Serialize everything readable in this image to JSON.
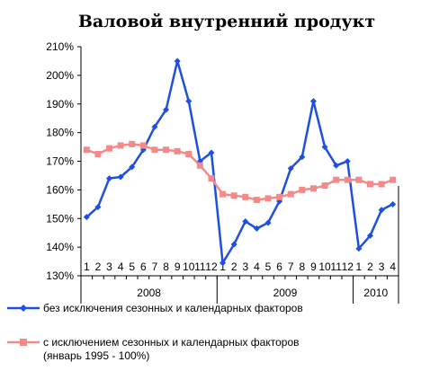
{
  "chart_data": {
    "type": "line",
    "title": "Валовой внутренний продукт",
    "ylim": [
      130,
      210
    ],
    "yticks": [
      "130%",
      "140%",
      "150%",
      "160%",
      "170%",
      "180%",
      "190%",
      "200%",
      "210%"
    ],
    "ytick_values": [
      130,
      140,
      150,
      160,
      170,
      180,
      190,
      200,
      210
    ],
    "grid": false,
    "legend_position": "bottom",
    "categories": [
      "1",
      "2",
      "3",
      "4",
      "5",
      "6",
      "7",
      "8",
      "9",
      "10",
      "11",
      "12",
      "1",
      "2",
      "3",
      "4",
      "5",
      "6",
      "7",
      "8",
      "9",
      "10",
      "11",
      "12",
      "1",
      "2",
      "3",
      "4"
    ],
    "year_groups": [
      {
        "label": "2008",
        "count": 12
      },
      {
        "label": "2009",
        "count": 12
      },
      {
        "label": "2010",
        "count": 4
      }
    ],
    "series": [
      {
        "name": "без исключения сезонных и календарных факторов",
        "color": "#1f4fe0",
        "marker": "diamond",
        "values": [
          150.5,
          154,
          164,
          164.5,
          168,
          174,
          182,
          188,
          205,
          191,
          170,
          173,
          134.5,
          141,
          149,
          146.5,
          148.5,
          156,
          167.5,
          171.5,
          191,
          175,
          168.5,
          170,
          139.5,
          144,
          153,
          155
        ]
      },
      {
        "name": "с исключением сезонных и календарных факторов (январь 1995 - 100%)",
        "color": "#f48a88",
        "marker": "square",
        "values": [
          174,
          172.5,
          174.5,
          175.5,
          176,
          175.5,
          174,
          174,
          173.5,
          172.5,
          168.5,
          164,
          158.5,
          158,
          157.5,
          156.5,
          157,
          157.5,
          158.5,
          160,
          160.5,
          161.5,
          163.5,
          163.5,
          163.5,
          162,
          162,
          163.5
        ]
      }
    ]
  },
  "legend": [
    {
      "lines": [
        "без исключения сезонных и календарных факторов"
      ]
    },
    {
      "lines": [
        "с исключением сезонных и календарных факторов",
        "(январь 1995 - 100%)"
      ]
    }
  ]
}
